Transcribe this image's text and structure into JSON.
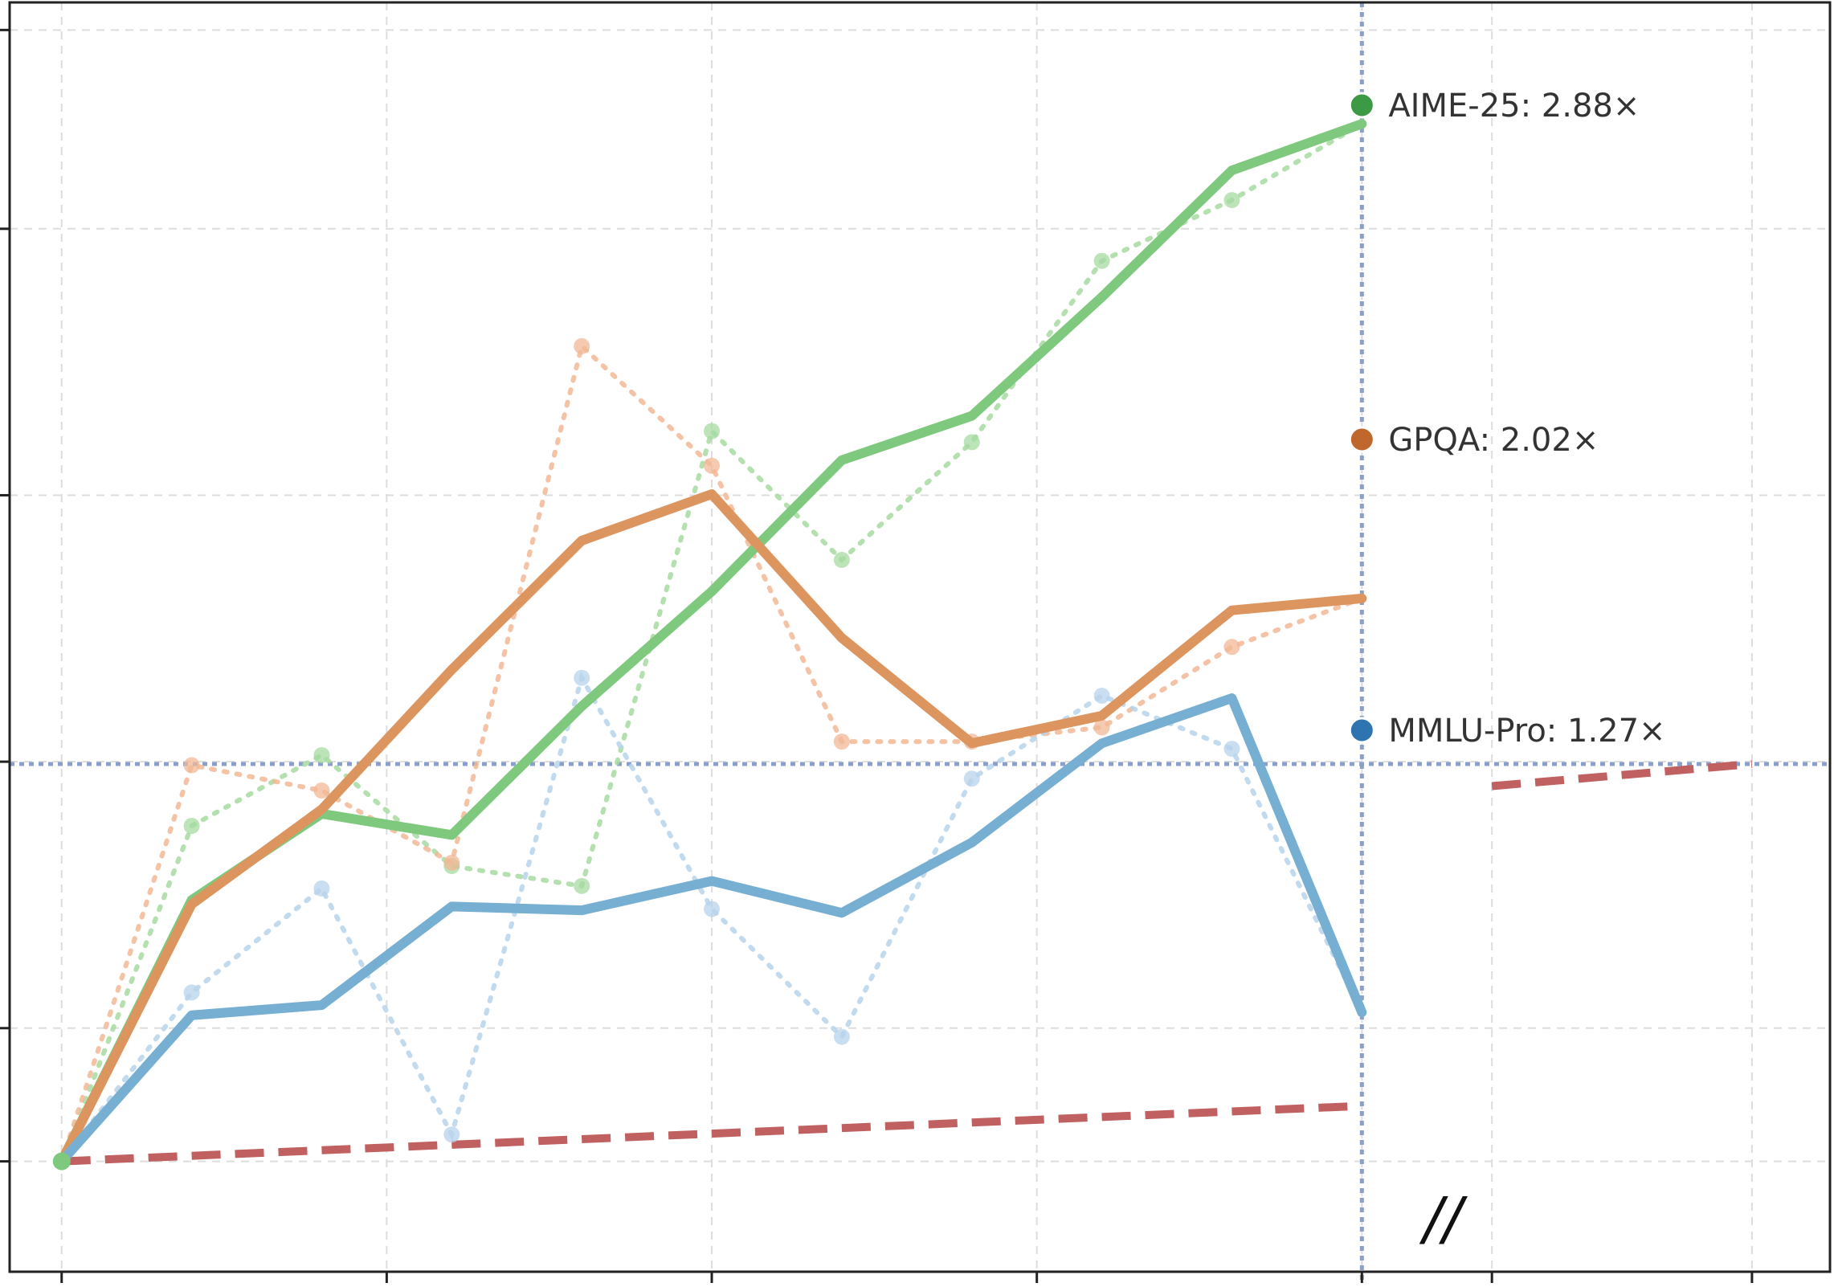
{
  "chart_data": {
    "type": "line",
    "title": "",
    "xlabel": "",
    "ylabel": "",
    "x": [
      0,
      1,
      2,
      3,
      4,
      5,
      6,
      7,
      8,
      9,
      10
    ],
    "xlim": [
      -0.4,
      13.6
    ],
    "ylim": [
      0.8,
      3.1
    ],
    "grid": true,
    "legend": "none",
    "series": [
      {
        "name": "AIME-25",
        "color": "#3c9a44",
        "line_color": "#7fc97f",
        "raw_color": "#a6dba0",
        "smoothed": [
          1.0,
          1.4737,
          1.6298,
          1.5914,
          1.8246,
          2.0328,
          2.2706,
          2.3508,
          2.5661,
          2.7956,
          2.88
        ],
        "raw": [
          1.0,
          1.6079,
          1.7361,
          1.5351,
          1.499,
          2.3232,
          2.0899,
          2.3031,
          2.6317,
          2.7418,
          2.88
        ],
        "end_label": "AIME-25: 2.88×"
      },
      {
        "name": "GPQA",
        "color": "#c0672d",
        "line_color": "#dd955f",
        "raw_color": "#f2b896",
        "smoothed": [
          1.0,
          1.466,
          1.6377,
          1.8909,
          2.1248,
          2.209,
          1.9484,
          1.7576,
          1.8076,
          1.9985,
          2.02
        ],
        "raw": [
          1.0,
          1.7178,
          1.6719,
          1.5412,
          2.4771,
          2.2605,
          1.7606,
          1.7606,
          1.7863,
          1.9322,
          2.02
        ],
        "end_label": "GPQA: 2.02×"
      },
      {
        "name": "MMLU-Pro",
        "color": "#2e74b0",
        "line_color": "#76afd1",
        "raw_color": "#b7d3eb",
        "smoothed": [
          1.0,
          1.2647,
          1.2831,
          1.4618,
          1.4549,
          1.508,
          1.4503,
          1.5778,
          1.7575,
          1.8393,
          1.27
        ],
        "raw": [
          1.0,
          1.306,
          1.4945,
          1.0486,
          1.8761,
          1.4573,
          1.2257,
          1.6935,
          1.8438,
          1.7475,
          1.27
        ],
        "end_label": "MMLU-Pro: 1.27×"
      }
    ],
    "reference_lines": [
      {
        "type": "vertical",
        "x": 10,
        "color": "#8aa0cc"
      },
      {
        "type": "horizontal",
        "y": 1.72,
        "color": "#8aa0cc"
      }
    ],
    "baseline": {
      "color": "#c06060",
      "segments": [
        {
          "x": [
            0,
            9.95
          ],
          "y": [
            1.0,
            1.1
          ]
        },
        {
          "x": [
            11.0,
            13.0
          ],
          "y": [
            1.68,
            1.72
          ]
        }
      ]
    },
    "axis_break_label": "//"
  }
}
